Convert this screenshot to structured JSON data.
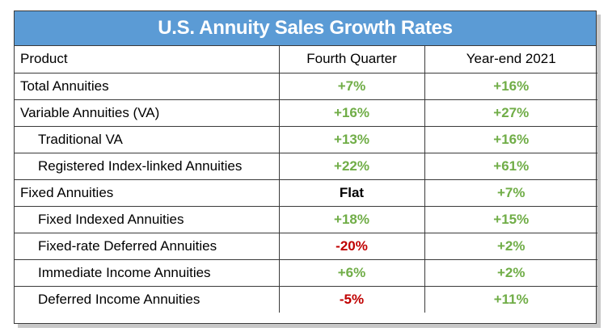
{
  "title": "U.S. Annuity Sales Growth Rates",
  "colors": {
    "title_bg": "#5b9bd5",
    "positive": "#70ad47",
    "negative": "#c00000",
    "neutral": "#000000"
  },
  "chart_data": {
    "type": "table",
    "title": "U.S. Annuity Sales Growth Rates",
    "columns": [
      "Product",
      "Fourth Quarter",
      "Year-end 2021"
    ],
    "rows": [
      {
        "product": "Total Annuities",
        "indent": false,
        "q4": "+7%",
        "q4_sign": "pos",
        "ye": "+16%",
        "ye_sign": "pos"
      },
      {
        "product": "Variable Annuities (VA)",
        "indent": false,
        "q4": "+16%",
        "q4_sign": "pos",
        "ye": "+27%",
        "ye_sign": "pos"
      },
      {
        "product": "Traditional VA",
        "indent": true,
        "q4": "+13%",
        "q4_sign": "pos",
        "ye": "+16%",
        "ye_sign": "pos"
      },
      {
        "product": "Registered Index-linked Annuities",
        "indent": true,
        "q4": "+22%",
        "q4_sign": "pos",
        "ye": "+61%",
        "ye_sign": "pos"
      },
      {
        "product": "Fixed Annuities",
        "indent": false,
        "q4": "Flat",
        "q4_sign": "flat",
        "ye": "+7%",
        "ye_sign": "pos"
      },
      {
        "product": "Fixed Indexed Annuities",
        "indent": true,
        "q4": "+18%",
        "q4_sign": "pos",
        "ye": "+15%",
        "ye_sign": "pos"
      },
      {
        "product": "Fixed-rate Deferred Annuities",
        "indent": true,
        "q4": "-20%",
        "q4_sign": "neg",
        "ye": "+2%",
        "ye_sign": "pos"
      },
      {
        "product": "Immediate Income Annuities",
        "indent": true,
        "q4": "+6%",
        "q4_sign": "pos",
        "ye": "+2%",
        "ye_sign": "pos"
      },
      {
        "product": "Deferred Income Annuities",
        "indent": true,
        "q4": "-5%",
        "q4_sign": "neg",
        "ye": "+11%",
        "ye_sign": "pos"
      }
    ]
  }
}
